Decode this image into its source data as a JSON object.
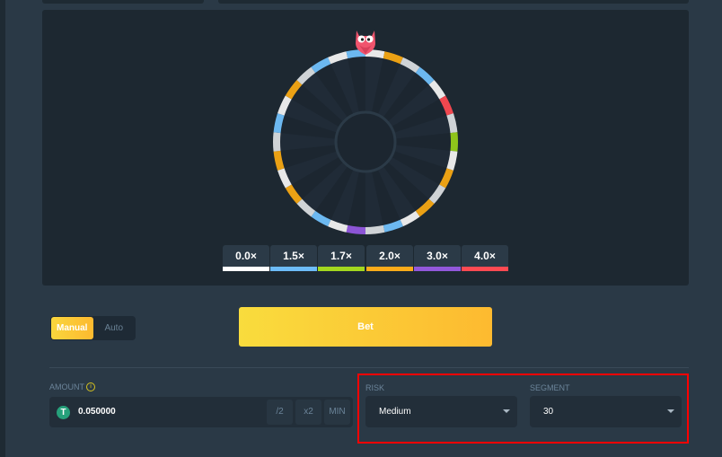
{
  "wheel": {
    "segments": [
      "white",
      "orange",
      "white",
      "blue",
      "white",
      "red",
      "white",
      "green",
      "white",
      "orange",
      "white",
      "orange",
      "white",
      "blue",
      "white",
      "purple",
      "white",
      "blue",
      "white",
      "orange",
      "white",
      "orange",
      "white",
      "blue",
      "white",
      "orange",
      "white",
      "blue",
      "white",
      "blue"
    ],
    "colors": {
      "white": "#e8e8e8",
      "blue": "#6cb8f0",
      "orange": "#eba114",
      "red": "#f0474f",
      "green": "#8fc41b",
      "purple": "#8c55d6"
    },
    "pointer_icon": "owl-icon"
  },
  "legend": [
    {
      "label": "0.0×",
      "color": "#ffffff"
    },
    {
      "label": "1.5×",
      "color": "#6dbcf9"
    },
    {
      "label": "1.7×",
      "color": "#a3d71f"
    },
    {
      "label": "2.0×",
      "color": "#fbab1a"
    },
    {
      "label": "3.0×",
      "color": "#9258db"
    },
    {
      "label": "4.0×",
      "color": "#ff4a52"
    }
  ],
  "mode": {
    "manual": "Manual",
    "auto": "Auto",
    "selected": "Manual"
  },
  "bet_label": "Bet",
  "amount": {
    "label": "AMOUNT",
    "value": "0.050000",
    "currency_icon": "tether-icon",
    "half": "/2",
    "double": "x2",
    "min": "MIN"
  },
  "risk": {
    "label": "RISK",
    "value": "Medium"
  },
  "segment": {
    "label": "SEGMENT",
    "value": "30"
  },
  "accent": "#fdc534"
}
